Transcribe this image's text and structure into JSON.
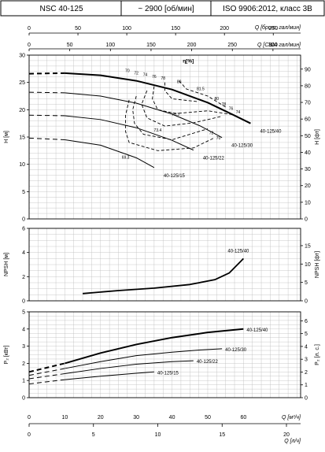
{
  "header": {
    "model": "NSC 40-125",
    "speed": "~ 2900 [об/мин]",
    "standard": "ISO 9906:2012, класс 3B"
  },
  "axes": {
    "top_q_imp": {
      "label": "Q [брит. гал/мин]",
      "ticks": [
        "0",
        "50",
        "100",
        "150",
        "200",
        "250"
      ],
      "range": [
        0,
        278
      ]
    },
    "top_q_us": {
      "label": "Q [США гал/мин]",
      "ticks": [
        "0",
        "50",
        "100",
        "150",
        "200",
        "250",
        "300"
      ],
      "range": [
        0,
        334
      ]
    },
    "bottom_q_m3h": {
      "label": "Q [м³/ч]",
      "ticks": [
        "0",
        "10",
        "20",
        "30",
        "40",
        "50",
        "60"
      ],
      "range": [
        0,
        76
      ]
    },
    "bottom_q_ls": {
      "label": "Q [л/ч]",
      "ticks": [
        "0",
        "5",
        "10",
        "15",
        "20"
      ],
      "range": [
        0,
        21.1
      ]
    }
  },
  "chart_data": [
    {
      "type": "line",
      "title": "",
      "xlabel": "",
      "ylabel": "H [м]",
      "ylabel_right": "H [фт]",
      "efficiency_label": "η[%]",
      "xlim": [
        0,
        76
      ],
      "ylim": [
        0,
        30
      ],
      "yticks": [
        "0",
        "5",
        "10",
        "15",
        "20",
        "25",
        "30"
      ],
      "yticks_right": [
        "0",
        "10",
        "20",
        "30",
        "40",
        "50",
        "60",
        "70",
        "80",
        "90"
      ],
      "ylim_right": [
        0,
        98.4
      ],
      "series": [
        {
          "name": "40-125/40",
          "x": [
            0,
            10,
            20,
            30,
            40,
            50,
            57,
            62
          ],
          "y": [
            26.6,
            26.7,
            26.3,
            25.3,
            23.7,
            21.3,
            19.1,
            17.5
          ]
        },
        {
          "name": "40-125/30",
          "x": [
            0,
            10,
            20,
            30,
            40,
            48,
            54
          ],
          "y": [
            23.2,
            23.1,
            22.5,
            21.2,
            19.2,
            17.0,
            14.9
          ]
        },
        {
          "name": "40-125/22",
          "x": [
            0,
            10,
            20,
            30,
            40,
            46
          ],
          "y": [
            19.0,
            18.9,
            18.2,
            16.7,
            14.4,
            12.6
          ]
        },
        {
          "name": "40-125/15",
          "x": [
            0,
            10,
            20,
            30,
            35
          ],
          "y": [
            14.8,
            14.5,
            13.5,
            11.2,
            9.4
          ]
        }
      ],
      "dashed_until_x": 10,
      "efficiency_labels": [
        "70",
        "72",
        "74",
        "76",
        "78",
        "80",
        "81.5",
        "80",
        "78",
        "76",
        "74",
        "78.3",
        "73.4",
        "72",
        "70",
        "69.3"
      ],
      "series_labels": [
        "40-125/40",
        "40-125/30",
        "40-125/22",
        "40-125/15"
      ]
    },
    {
      "type": "line",
      "title": "",
      "xlabel": "",
      "ylabel": "NPSH [м]",
      "ylabel_right": "NPSH [фт]",
      "xlim": [
        0,
        76
      ],
      "ylim": [
        0,
        6
      ],
      "yticks": [
        "0",
        "2",
        "4",
        "6"
      ],
      "yticks_right": [
        "0",
        "5",
        "10",
        "15"
      ],
      "ylim_right": [
        0,
        19.7
      ],
      "series": [
        {
          "name": "40-125/40",
          "x": [
            15,
            25,
            35,
            45,
            52,
            56,
            60
          ],
          "y": [
            0.6,
            0.85,
            1.05,
            1.35,
            1.75,
            2.3,
            3.5
          ]
        }
      ]
    },
    {
      "type": "line",
      "title": "",
      "xlabel": "",
      "ylabel": "P₂ [кВт]",
      "ylabel_right": "P₂ [л. с.]",
      "xlim": [
        0,
        76
      ],
      "ylim": [
        0,
        5
      ],
      "yticks": [
        "0",
        "1",
        "2",
        "3",
        "4",
        "5"
      ],
      "yticks_right": [
        "0",
        "1",
        "2",
        "3",
        "4",
        "5",
        "6"
      ],
      "ylim_right": [
        0,
        6.7
      ],
      "series": [
        {
          "name": "40-125/40",
          "x": [
            0,
            10,
            20,
            30,
            40,
            50,
            60
          ],
          "y": [
            1.5,
            2.0,
            2.6,
            3.1,
            3.5,
            3.8,
            4.0
          ]
        },
        {
          "name": "40-125/30",
          "x": [
            0,
            10,
            20,
            30,
            40,
            48,
            54
          ],
          "y": [
            1.3,
            1.7,
            2.1,
            2.45,
            2.65,
            2.78,
            2.85
          ]
        },
        {
          "name": "40-125/22",
          "x": [
            0,
            10,
            20,
            30,
            40,
            46
          ],
          "y": [
            1.1,
            1.4,
            1.7,
            1.95,
            2.1,
            2.15
          ]
        },
        {
          "name": "40-125/15",
          "x": [
            0,
            10,
            20,
            30,
            35
          ],
          "y": [
            0.8,
            1.05,
            1.25,
            1.42,
            1.5
          ]
        }
      ],
      "dashed_until_x": 10
    }
  ]
}
